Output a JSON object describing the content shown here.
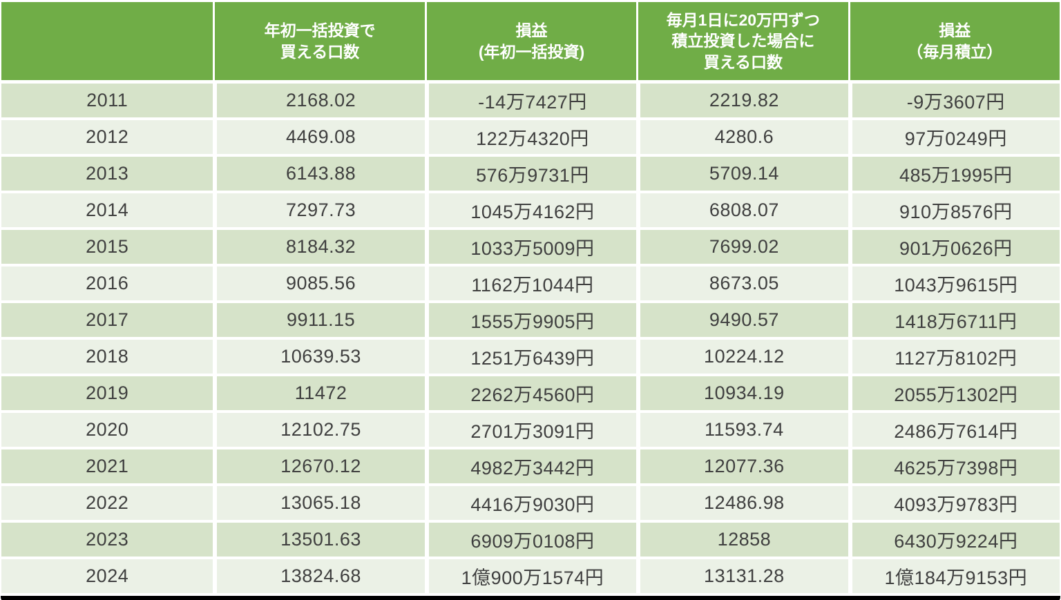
{
  "colors": {
    "header_background": "#70AD47",
    "header_text": "#FFFFFF",
    "row_band_dark": "#D6E3C9",
    "row_band_light": "#EBF1E6",
    "body_text": "#3F3F3F",
    "grid_lines": "#FFFFFF",
    "bottom_border": "#000000"
  },
  "chart_data": {
    "type": "table",
    "columns": [
      "",
      "年初一括投資で\n買える口数",
      "損益\n(年初一括投資)",
      "毎月1日に20万円ずつ\n積立投資した場合に\n買える口数",
      "損益\n（毎月積立）"
    ],
    "rows": [
      [
        "2011",
        "2168.02",
        "-14万7427円",
        "2219.82",
        "-9万3607円"
      ],
      [
        "2012",
        "4469.08",
        "122万4320円",
        "4280.6",
        "97万0249円"
      ],
      [
        "2013",
        "6143.88",
        "576万9731円",
        "5709.14",
        "485万1995円"
      ],
      [
        "2014",
        "7297.73",
        "1045万4162円",
        "6808.07",
        "910万8576円"
      ],
      [
        "2015",
        "8184.32",
        "1033万5009円",
        "7699.02",
        "901万0626円"
      ],
      [
        "2016",
        "9085.56",
        "1162万1044円",
        "8673.05",
        "1043万9615円"
      ],
      [
        "2017",
        "9911.15",
        "1555万9905円",
        "9490.57",
        "1418万6711円"
      ],
      [
        "2018",
        "10639.53",
        "1251万6439円",
        "10224.12",
        "1127万8102円"
      ],
      [
        "2019",
        "11472",
        "2262万4560円",
        "10934.19",
        "2055万1302円"
      ],
      [
        "2020",
        "12102.75",
        "2701万3091円",
        "11593.74",
        "2486万7614円"
      ],
      [
        "2021",
        "12670.12",
        "4982万3442円",
        "12077.36",
        "4625万7398円"
      ],
      [
        "2022",
        "13065.18",
        "4416万9030円",
        "12486.98",
        "4093万9783円"
      ],
      [
        "2023",
        "13501.63",
        "6909万0108円",
        "12858",
        "6430万9224円"
      ],
      [
        "2024",
        "13824.68",
        "1億900万1574円",
        "13131.28",
        "1億184万9153円"
      ]
    ]
  }
}
